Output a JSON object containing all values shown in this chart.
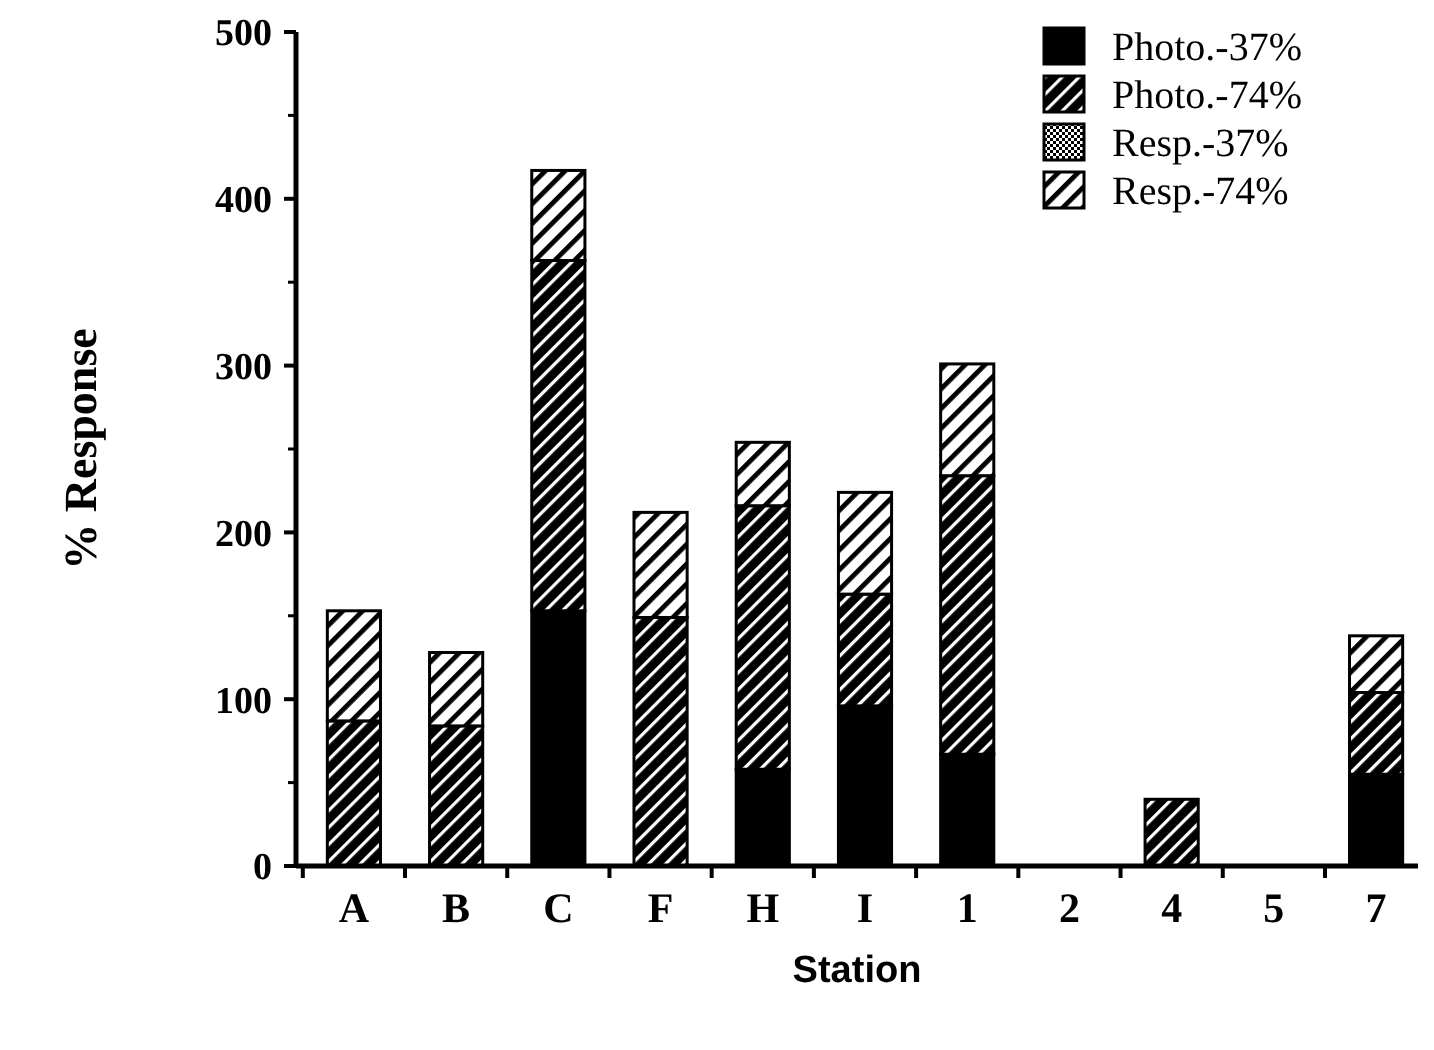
{
  "chart_data": {
    "type": "bar",
    "stacked": true,
    "xlabel": "Station",
    "ylabel": "% Response",
    "categories": [
      "A",
      "B",
      "C",
      "F",
      "H",
      "I",
      "1",
      "2",
      "4",
      "5",
      "7"
    ],
    "ylim": [
      0,
      500
    ],
    "yticks": [
      0,
      100,
      200,
      300,
      400,
      500
    ],
    "legend": "top right",
    "grid": false,
    "series": [
      {
        "name": "Photo.-37%",
        "color": "#000000",
        "values": [
          0,
          0,
          153,
          0,
          58,
          96,
          67,
          0,
          0,
          0,
          55
        ]
      },
      {
        "name": "Photo.-74%",
        "color": "#000000",
        "values": [
          87,
          84,
          210,
          149,
          158,
          67,
          167,
          0,
          40,
          0,
          49
        ]
      },
      {
        "name": "Resp.-37%",
        "color": "#000000",
        "values": [
          0,
          0,
          0,
          0,
          0,
          0,
          0,
          0,
          0,
          0,
          0
        ]
      },
      {
        "name": "Resp.-74%",
        "color": "#000000",
        "values": [
          66,
          44,
          54,
          63,
          38,
          61,
          67,
          0,
          0,
          0,
          34
        ]
      }
    ]
  }
}
